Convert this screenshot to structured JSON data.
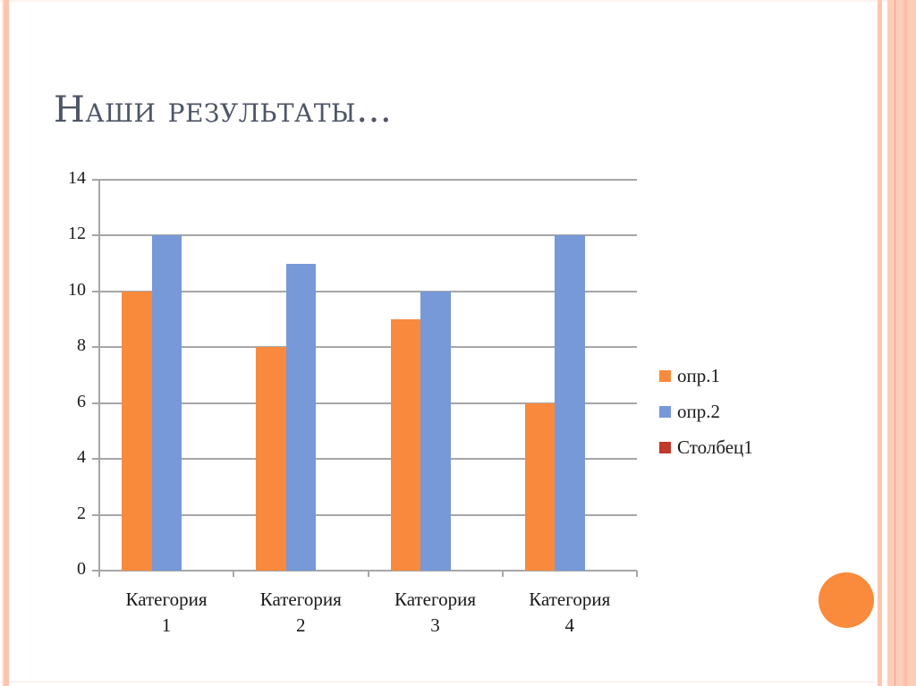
{
  "slide": {
    "title": "Наши результаты…",
    "colors": {
      "series1": "#f98a3d",
      "series2": "#7799d8",
      "series3": "#c0392b",
      "title": "#4e5666",
      "accent_circle": "#fa8a3c",
      "frame_stripe": "#fcc5b0"
    }
  },
  "chart_data": {
    "type": "bar",
    "title": "",
    "xlabel": "",
    "ylabel": "",
    "categories": [
      "Категория 1",
      "Категория 2",
      "Категория 3",
      "Категория 4"
    ],
    "category_lines": [
      [
        "Категория",
        "1"
      ],
      [
        "Категория",
        "2"
      ],
      [
        "Категория",
        "3"
      ],
      [
        "Категория",
        "4"
      ]
    ],
    "series": [
      {
        "name": "опр.1",
        "color": "#f98a3d",
        "values": [
          10,
          8,
          9,
          6
        ]
      },
      {
        "name": "опр.2",
        "color": "#7799d8",
        "values": [
          12,
          11,
          10,
          12
        ]
      },
      {
        "name": "Столбец1",
        "color": "#c0392b",
        "values": [
          null,
          null,
          null,
          null
        ]
      }
    ],
    "ylim": [
      0,
      14
    ],
    "yticks": [
      0,
      2,
      4,
      6,
      8,
      10,
      12,
      14
    ],
    "grid": true,
    "legend_position": "right"
  }
}
